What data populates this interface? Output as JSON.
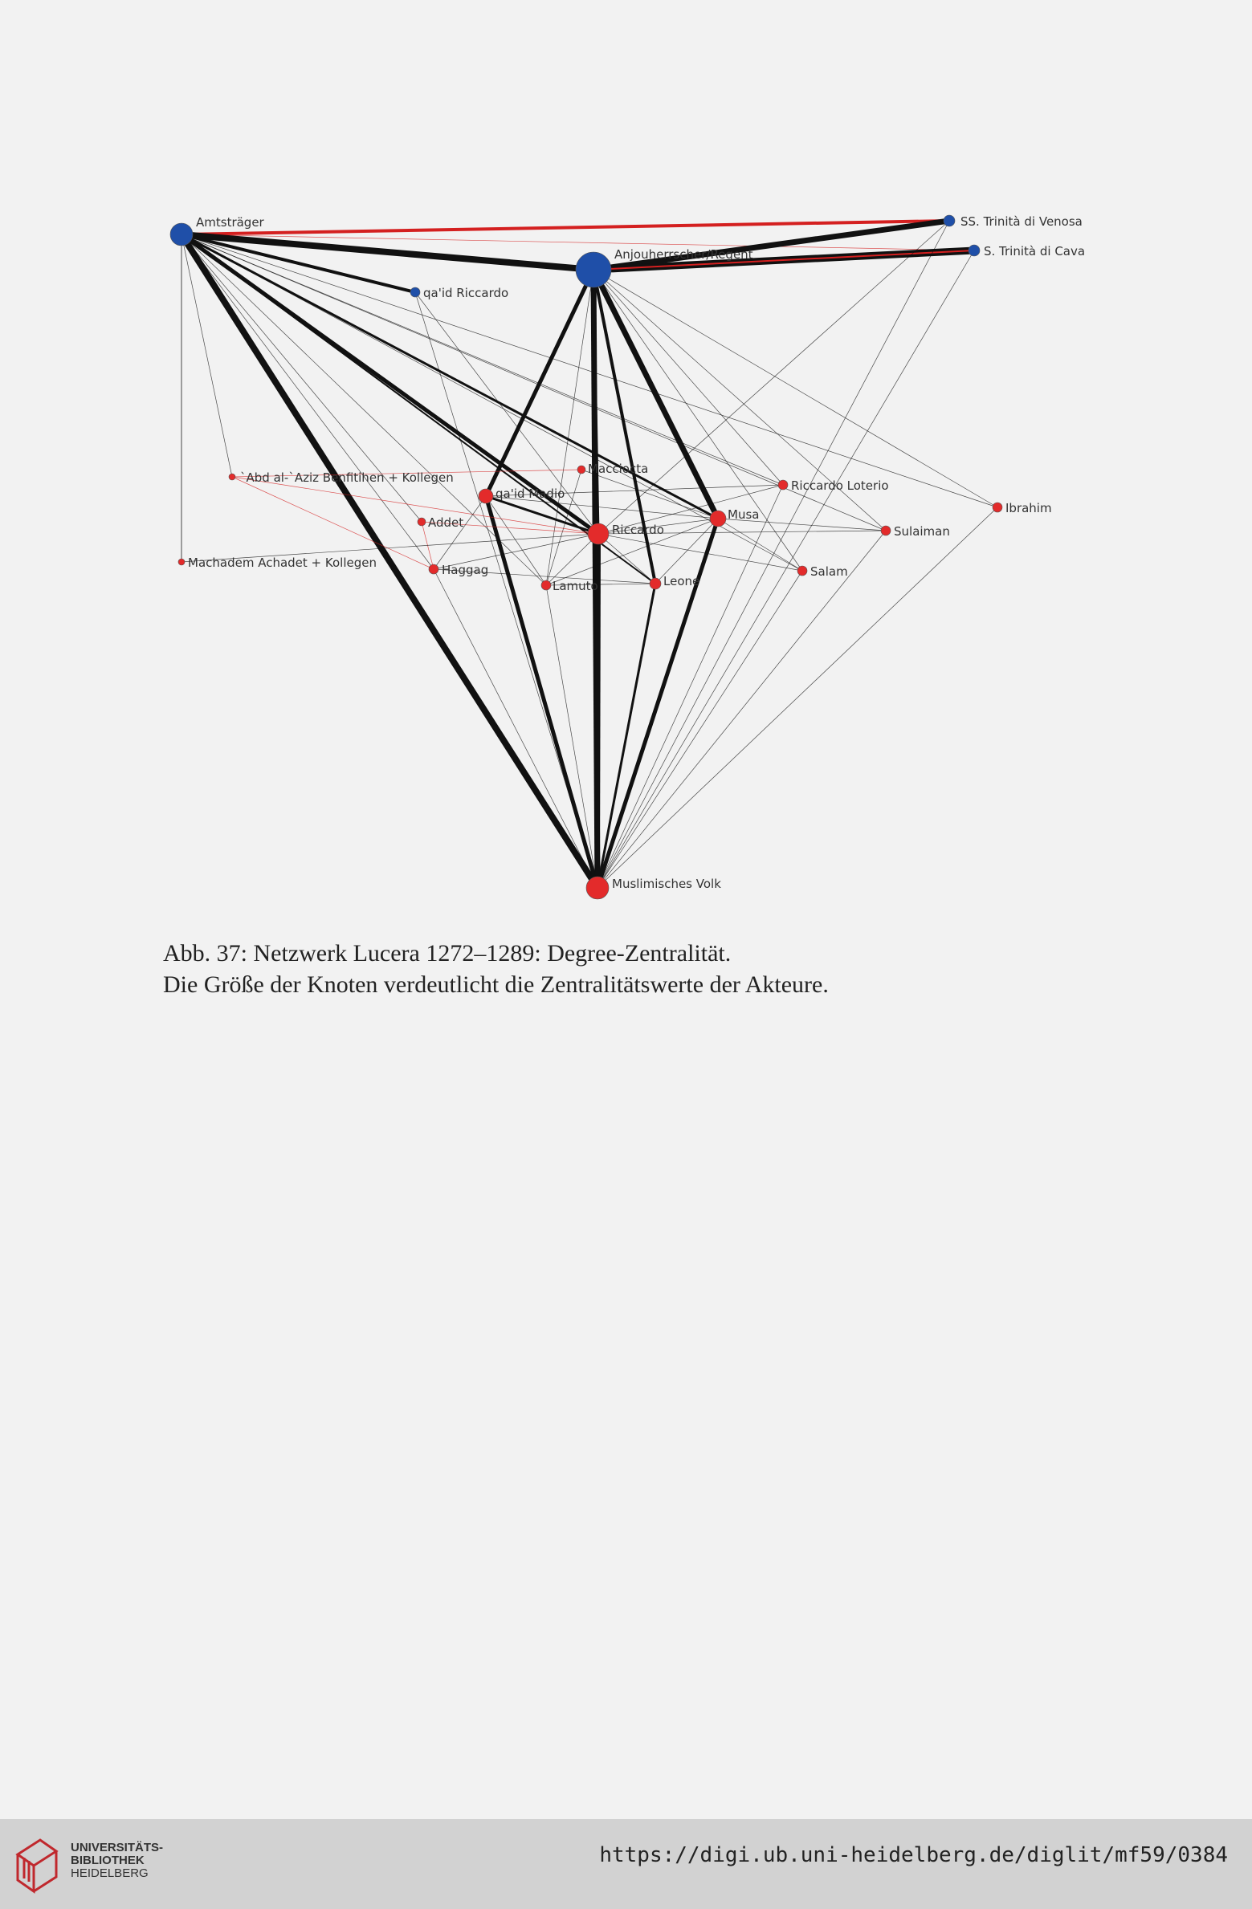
{
  "figure": {
    "nodes": [
      {
        "id": "amtstraeger",
        "label": "Amtsträger",
        "group": "blue"
      },
      {
        "id": "venosa",
        "label": "SS. Trinità di Venosa",
        "group": "blue"
      },
      {
        "id": "cava",
        "label": "S. Trinità di Cava",
        "group": "blue"
      },
      {
        "id": "anjou",
        "label": "Anjouherrscher/Regent",
        "group": "blue"
      },
      {
        "id": "qaid_riccardo",
        "label": "qa'id Riccardo",
        "group": "blue"
      },
      {
        "id": "abd",
        "label": "`Abd al-`Aziz Benfitihen + Kollegen",
        "group": "red"
      },
      {
        "id": "macciocta",
        "label": "Macciocta",
        "group": "red"
      },
      {
        "id": "qaid_madio",
        "label": "qa'id Madio",
        "group": "red"
      },
      {
        "id": "riccardo_loterio",
        "label": "Riccardo Loterio",
        "group": "red"
      },
      {
        "id": "ibrahim",
        "label": "Ibrahim",
        "group": "red"
      },
      {
        "id": "addet",
        "label": "Addet",
        "group": "red"
      },
      {
        "id": "riccardo",
        "label": "Riccardo",
        "group": "red"
      },
      {
        "id": "musa",
        "label": "Musa",
        "group": "red"
      },
      {
        "id": "sulaiman",
        "label": "Sulaiman",
        "group": "red"
      },
      {
        "id": "machadem",
        "label": "Machadem Achadet + Kollegen",
        "group": "red"
      },
      {
        "id": "haggag",
        "label": "Haggag",
        "group": "red"
      },
      {
        "id": "lamuto",
        "label": "Lamuto",
        "group": "red"
      },
      {
        "id": "leone",
        "label": "Leone",
        "group": "red"
      },
      {
        "id": "salam",
        "label": "Salam",
        "group": "red"
      },
      {
        "id": "volk",
        "label": "Muslimisches Volk",
        "group": "red"
      }
    ],
    "colors": {
      "blue": "#1f4fa8",
      "red": "#e32b2b",
      "edge": "#111111",
      "red_edge": "#d42020"
    }
  },
  "caption": {
    "line1": "Abb. 37: Netzwerk Lucera 1272–1289: Degree-Zentralität.",
    "line2": "Die Größe der Knoten verdeutlicht die Zentralitätswerte der Akteure."
  },
  "footer": {
    "logo_line1": "UNIVERSITÄTS-",
    "logo_line2": "BIBLIOTHEK",
    "logo_line3": "HEIDELBERG",
    "url": "https://digi.ub.uni-heidelberg.de/diglit/mf59/0384"
  }
}
